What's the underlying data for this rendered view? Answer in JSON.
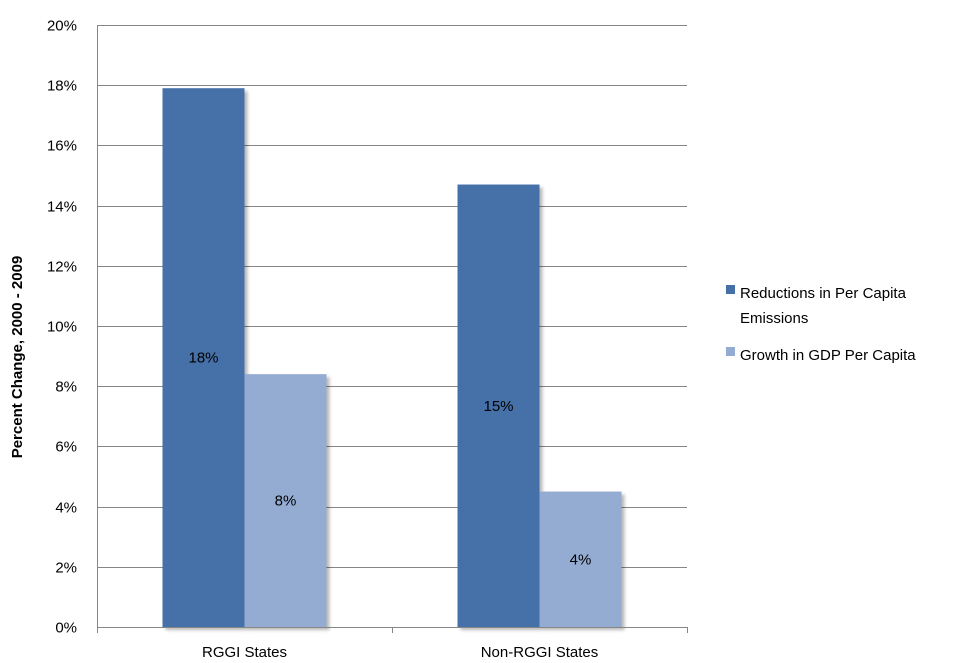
{
  "chart_data": {
    "type": "bar",
    "title": "",
    "xlabel": "",
    "ylabel": "Percent Change, 2000 - 2009",
    "categories": [
      "RGGI States",
      "Non-RGGI States"
    ],
    "series": [
      {
        "name": "Reductions in Per Capita Emissions",
        "legend_lines": [
          "Reductions in Per Capita",
          "Emissions"
        ],
        "values": [
          17.9,
          14.7
        ],
        "data_labels": [
          "18%",
          "15%"
        ],
        "color": "#4470a8"
      },
      {
        "name": "Growth in GDP Per Capita",
        "legend_lines": [
          "Growth in GDP Per Capita"
        ],
        "values": [
          8.4,
          4.5
        ],
        "data_labels": [
          "8%",
          "4%"
        ],
        "color": "#94abd2"
      }
    ],
    "ylim": [
      0,
      20
    ],
    "yticks": [
      0,
      2,
      4,
      6,
      8,
      10,
      12,
      14,
      16,
      18,
      20
    ],
    "ytick_labels": [
      "0%",
      "2%",
      "4%",
      "6%",
      "8%",
      "10%",
      "12%",
      "14%",
      "16%",
      "18%",
      "20%"
    ],
    "grid": true,
    "legend_position": "right"
  }
}
